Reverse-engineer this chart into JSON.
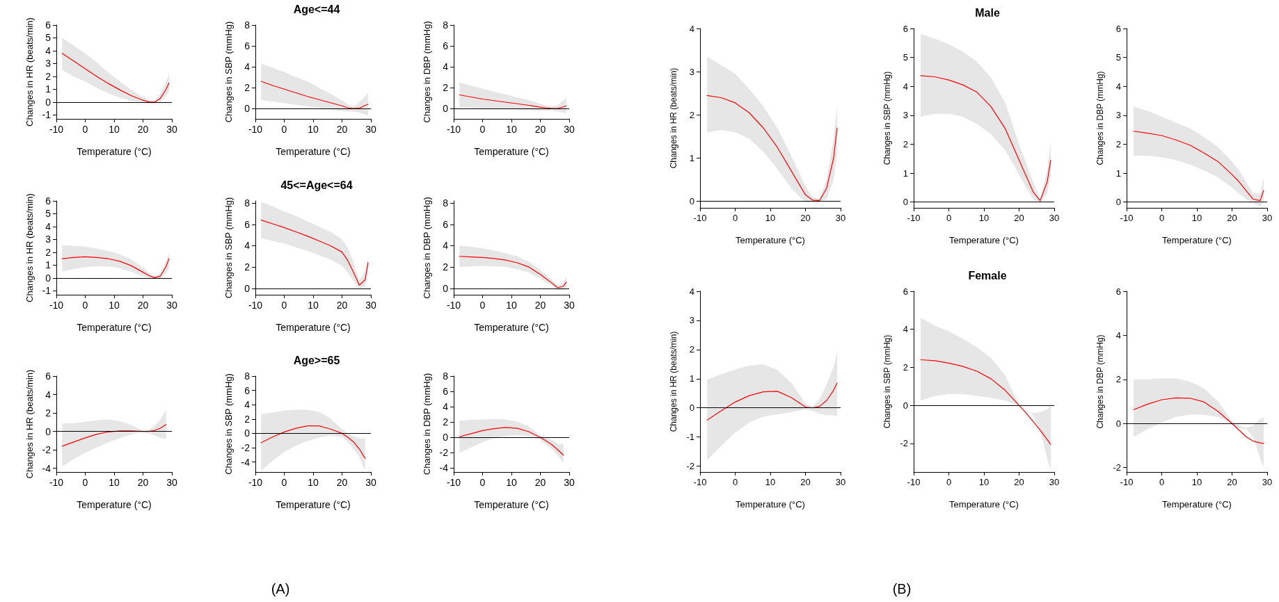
{
  "chart_data": [
    {
      "type": "line",
      "xlabel": "Temperature (°C)",
      "ylabel": "Changes in HR (beats/min)",
      "x": [
        -8,
        -4,
        0,
        4,
        8,
        12,
        16,
        20,
        22,
        24,
        26,
        28,
        29
      ],
      "xlim": [
        -10,
        30
      ],
      "xticks": [
        -10,
        0,
        10,
        20,
        30
      ],
      "ylim": [
        -1.3,
        6
      ],
      "yticks": [
        -1,
        0,
        1,
        2,
        3,
        4,
        5,
        6
      ],
      "ref_lines": [
        {
          "axis": "y",
          "value": 0
        }
      ],
      "series": [
        {
          "color": "#ff0000",
          "values": [
            3.8,
            3.2,
            2.6,
            2.0,
            1.45,
            0.95,
            0.5,
            0.15,
            0.02,
            0,
            0.3,
            1.0,
            1.5
          ],
          "lower": [
            2.5,
            2.0,
            1.6,
            1.1,
            0.7,
            0.35,
            0.1,
            -0.05,
            -0.1,
            -0.1,
            0,
            0.5,
            0.8
          ],
          "upper": [
            5.0,
            4.4,
            3.8,
            3.1,
            2.3,
            1.6,
            0.95,
            0.4,
            0.15,
            0.1,
            0.6,
            1.6,
            2.2
          ]
        }
      ]
    },
    {
      "type": "line",
      "title": "Age<=44",
      "xlabel": "Temperature (°C)",
      "ylabel": "Changes in SBP (mmHg)",
      "x": [
        -8,
        -4,
        0,
        4,
        8,
        12,
        16,
        20,
        22,
        24,
        26,
        28,
        29
      ],
      "xlim": [
        -10,
        30
      ],
      "xticks": [
        -10,
        0,
        10,
        20,
        30
      ],
      "ylim": [
        -1,
        8
      ],
      "yticks": [
        0,
        2,
        4,
        6,
        8
      ],
      "ref_lines": [
        {
          "axis": "y",
          "value": 0
        }
      ],
      "series": [
        {
          "color": "#ff0000",
          "values": [
            2.6,
            2.2,
            1.85,
            1.5,
            1.15,
            0.85,
            0.55,
            0.25,
            0.05,
            0,
            0.02,
            0.3,
            0.4
          ],
          "lower": [
            0.8,
            0.65,
            0.5,
            0.35,
            0.2,
            0.05,
            -0.1,
            -0.25,
            -0.3,
            -0.3,
            -0.4,
            -0.6,
            -0.7
          ],
          "upper": [
            4.3,
            3.9,
            3.5,
            3.0,
            2.6,
            2.0,
            1.4,
            0.8,
            0.4,
            0.2,
            0.6,
            1.2,
            1.5
          ]
        }
      ]
    },
    {
      "type": "line",
      "xlabel": "Temperature (°C)",
      "ylabel": "Changes in DBP (mmHg)",
      "x": [
        -8,
        -4,
        0,
        4,
        8,
        12,
        16,
        20,
        22,
        24,
        26,
        28,
        29
      ],
      "xlim": [
        -10,
        30
      ],
      "xticks": [
        -10,
        0,
        10,
        20,
        30
      ],
      "ylim": [
        -1,
        8
      ],
      "yticks": [
        0,
        2,
        4,
        6,
        8
      ],
      "ref_lines": [
        {
          "axis": "y",
          "value": 0
        }
      ],
      "series": [
        {
          "color": "#ff0000",
          "values": [
            1.3,
            1.1,
            0.9,
            0.75,
            0.6,
            0.45,
            0.3,
            0.12,
            0.05,
            0,
            0,
            0.15,
            0.25
          ],
          "lower": [
            0.1,
            0.05,
            0,
            0,
            -0.05,
            -0.1,
            -0.15,
            -0.2,
            -0.2,
            -0.2,
            -0.3,
            -0.4,
            -0.5
          ],
          "upper": [
            2.5,
            2.2,
            1.9,
            1.6,
            1.35,
            1.05,
            0.8,
            0.45,
            0.3,
            0.2,
            0.3,
            0.8,
            1.0
          ]
        }
      ]
    },
    {
      "type": "line",
      "xlabel": "Temperature (°C)",
      "ylabel": "Changes in HR (beats/min)",
      "x": [
        -8,
        -4,
        0,
        4,
        8,
        12,
        16,
        20,
        22,
        24,
        26,
        28,
        29
      ],
      "xlim": [
        -10,
        30
      ],
      "xticks": [
        -10,
        0,
        10,
        20,
        30
      ],
      "ylim": [
        -1.3,
        6
      ],
      "yticks": [
        -1,
        0,
        1,
        2,
        3,
        4,
        5,
        6
      ],
      "ref_lines": [
        {
          "axis": "y",
          "value": 0
        }
      ],
      "series": [
        {
          "color": "#ff0000",
          "values": [
            1.5,
            1.6,
            1.65,
            1.6,
            1.5,
            1.3,
            0.95,
            0.45,
            0.2,
            0.02,
            0.15,
            0.9,
            1.5
          ],
          "lower": [
            0.5,
            0.7,
            0.85,
            0.9,
            0.9,
            0.75,
            0.5,
            0.15,
            0,
            -0.1,
            -0.05,
            0.4,
            0.7
          ],
          "upper": [
            2.55,
            2.5,
            2.45,
            2.3,
            2.1,
            1.85,
            1.45,
            0.8,
            0.45,
            0.15,
            0.35,
            1.3,
            1.9
          ]
        }
      ]
    },
    {
      "type": "line",
      "title": "45<=Age<=64",
      "xlabel": "Temperature (°C)",
      "ylabel": "Changes in SBP (mmHg)",
      "x": [
        -8,
        -4,
        0,
        4,
        8,
        12,
        16,
        20,
        22,
        24,
        26,
        28,
        29
      ],
      "xlim": [
        -10,
        30
      ],
      "xticks": [
        -10,
        0,
        10,
        20,
        30
      ],
      "ylim": [
        -0.6,
        8.2
      ],
      "yticks": [
        0,
        2,
        4,
        6,
        8
      ],
      "ref_lines": [
        {
          "axis": "y",
          "value": 0
        }
      ],
      "series": [
        {
          "color": "#ff0000",
          "values": [
            6.4,
            6.05,
            5.7,
            5.3,
            4.9,
            4.45,
            4.0,
            3.4,
            2.6,
            1.5,
            0.3,
            0.8,
            2.4
          ],
          "lower": [
            4.7,
            4.45,
            4.2,
            3.85,
            3.5,
            3.1,
            2.7,
            2.1,
            1.5,
            0.7,
            -0.1,
            0.2,
            1.5
          ],
          "upper": [
            8.1,
            7.7,
            7.2,
            6.8,
            6.3,
            5.8,
            5.3,
            4.6,
            3.8,
            2.4,
            0.7,
            1.6,
            2.9
          ]
        }
      ]
    },
    {
      "type": "line",
      "xlabel": "Temperature (°C)",
      "ylabel": "Changes in DBP (mmHg)",
      "x": [
        -8,
        -4,
        0,
        4,
        8,
        12,
        16,
        20,
        22,
        24,
        26,
        28,
        29
      ],
      "xlim": [
        -10,
        30
      ],
      "xticks": [
        -10,
        0,
        10,
        20,
        30
      ],
      "ylim": [
        -0.6,
        8.2
      ],
      "yticks": [
        0,
        2,
        4,
        6,
        8
      ],
      "ref_lines": [
        {
          "axis": "y",
          "value": 0
        }
      ],
      "series": [
        {
          "color": "#ff0000",
          "values": [
            3.0,
            2.95,
            2.9,
            2.8,
            2.65,
            2.4,
            2.0,
            1.3,
            0.9,
            0.5,
            0.05,
            0.2,
            0.6
          ],
          "lower": [
            2.0,
            2.05,
            2.1,
            2.05,
            2.0,
            1.8,
            1.5,
            0.9,
            0.55,
            0.25,
            -0.15,
            -0.2,
            0.1
          ],
          "upper": [
            4.0,
            3.9,
            3.75,
            3.55,
            3.3,
            3.0,
            2.5,
            1.7,
            1.25,
            0.8,
            0.25,
            0.6,
            1.1
          ]
        }
      ]
    },
    {
      "type": "line",
      "xlabel": "Temperature (°C)",
      "ylabel": "Changes in HR (beats/min)",
      "x": [
        -8,
        -4,
        0,
        4,
        8,
        12,
        16,
        20,
        22,
        24,
        26,
        28
      ],
      "xlim": [
        -10,
        30
      ],
      "xticks": [
        -10,
        0,
        10,
        20,
        30
      ],
      "ylim": [
        -4.4,
        6
      ],
      "yticks": [
        -4,
        -2,
        0,
        2,
        4,
        6
      ],
      "ref_lines": [
        {
          "axis": "y",
          "value": 0
        }
      ],
      "series": [
        {
          "color": "#ff0000",
          "values": [
            -1.6,
            -1.15,
            -0.7,
            -0.3,
            -0.05,
            0.05,
            0.05,
            0,
            0,
            0.1,
            0.35,
            0.75
          ],
          "lower": [
            -3.8,
            -3.0,
            -2.3,
            -1.75,
            -1.2,
            -0.7,
            -0.35,
            -0.05,
            -0.2,
            -0.45,
            -0.7,
            -0.8
          ],
          "upper": [
            0.85,
            0.9,
            1.05,
            1.2,
            1.3,
            1.1,
            0.7,
            0.1,
            0.2,
            0.6,
            1.3,
            2.3
          ]
        }
      ]
    },
    {
      "type": "line",
      "title": "Age>=65",
      "xlabel": "Temperature (°C)",
      "ylabel": "Changes in SBP (mmHg)",
      "x": [
        -8,
        -4,
        0,
        4,
        8,
        12,
        16,
        20,
        22,
        24,
        26,
        28
      ],
      "xlim": [
        -10,
        30
      ],
      "xticks": [
        -10,
        0,
        10,
        20,
        30
      ],
      "ylim": [
        -5.4,
        8
      ],
      "yticks": [
        -4,
        -2,
        0,
        2,
        4,
        6,
        8
      ],
      "ref_lines": [
        {
          "axis": "y",
          "value": 0
        }
      ],
      "annotations": [
        "(A)"
      ],
      "series": [
        {
          "color": "#ff0000",
          "values": [
            -1.3,
            -0.5,
            0.2,
            0.7,
            1.05,
            1.05,
            0.6,
            0,
            -0.55,
            -1.2,
            -2.2,
            -3.5
          ],
          "lower": [
            -5.2,
            -3.8,
            -2.6,
            -1.7,
            -1.1,
            -0.6,
            -0.3,
            -0.5,
            -1.2,
            -2.2,
            -3.3,
            -5.2
          ],
          "upper": [
            2.7,
            2.9,
            3.2,
            3.3,
            3.3,
            3.0,
            2.1,
            0.6,
            0,
            -0.4,
            -0.7,
            -0.7
          ]
        }
      ]
    },
    {
      "type": "line",
      "xlabel": "Temperature (°C)",
      "ylabel": "Changes in DBP (mmHg)",
      "x": [
        -8,
        -4,
        0,
        4,
        8,
        12,
        16,
        20,
        22,
        24,
        26,
        28
      ],
      "xlim": [
        -10,
        30
      ],
      "xticks": [
        -10,
        0,
        10,
        20,
        30
      ],
      "ylim": [
        -4.5,
        8
      ],
      "yticks": [
        -4,
        -2,
        0,
        2,
        4,
        6,
        8
      ],
      "ref_lines": [
        {
          "axis": "y",
          "value": 0
        }
      ],
      "series": [
        {
          "color": "#ff0000",
          "values": [
            0.1,
            0.5,
            0.9,
            1.15,
            1.3,
            1.2,
            0.75,
            0,
            -0.45,
            -0.95,
            -1.6,
            -2.3
          ],
          "lower": [
            -2.0,
            -1.3,
            -0.6,
            -0.1,
            0.2,
            0.3,
            0.2,
            -0.3,
            -0.9,
            -1.5,
            -2.3,
            -3.4
          ],
          "upper": [
            2.2,
            2.3,
            2.35,
            2.4,
            2.35,
            2.1,
            1.4,
            0.3,
            -0.05,
            -0.35,
            -0.8,
            -0.9
          ]
        }
      ]
    },
    {
      "type": "line",
      "xlabel": "Temperature (°C)",
      "ylabel": "Changes in HR (beats/min)",
      "x": [
        -8,
        -4,
        0,
        4,
        8,
        12,
        16,
        20,
        22,
        24,
        26,
        28,
        29
      ],
      "xlim": [
        -10,
        30
      ],
      "xticks": [
        -10,
        0,
        10,
        20,
        30
      ],
      "ylim": [
        -0.15,
        4
      ],
      "yticks": [
        0,
        1,
        2,
        3,
        4
      ],
      "ref_lines": [
        {
          "axis": "y",
          "value": 0
        }
      ],
      "series": [
        {
          "color": "#ff0000",
          "values": [
            2.45,
            2.4,
            2.28,
            2.05,
            1.7,
            1.25,
            0.7,
            0.15,
            0.03,
            0.02,
            0.3,
            1.0,
            1.7
          ],
          "lower": [
            1.6,
            1.65,
            1.6,
            1.45,
            1.15,
            0.75,
            0.3,
            -0.02,
            -0.03,
            -0.03,
            0.05,
            0.5,
            1.1
          ],
          "upper": [
            3.35,
            3.15,
            2.95,
            2.6,
            2.2,
            1.7,
            1.05,
            0.35,
            0.1,
            0.05,
            0.5,
            1.45,
            2.2
          ]
        }
      ]
    },
    {
      "type": "line",
      "title": "Male",
      "xlabel": "Temperature (°C)",
      "ylabel": "Changes in SBP (mmHg)",
      "x": [
        -8,
        -4,
        0,
        4,
        8,
        12,
        16,
        20,
        22,
        24,
        26,
        28,
        29
      ],
      "xlim": [
        -10,
        30
      ],
      "xticks": [
        -10,
        0,
        10,
        20,
        30
      ],
      "ylim": [
        -0.2,
        6
      ],
      "yticks": [
        0,
        1,
        2,
        3,
        4,
        5,
        6
      ],
      "ref_lines": [
        {
          "axis": "y",
          "value": 0
        }
      ],
      "series": [
        {
          "color": "#ff0000",
          "values": [
            4.37,
            4.33,
            4.22,
            4.05,
            3.8,
            3.3,
            2.55,
            1.45,
            0.9,
            0.35,
            0.05,
            0.7,
            1.45
          ],
          "lower": [
            2.95,
            3.05,
            3.05,
            2.95,
            2.7,
            2.35,
            1.8,
            0.95,
            0.5,
            0.1,
            -0.05,
            0.3,
            0.9
          ],
          "upper": [
            5.8,
            5.65,
            5.45,
            5.2,
            4.85,
            4.3,
            3.45,
            2.0,
            1.35,
            0.7,
            0.1,
            1.1,
            2.1
          ]
        }
      ]
    },
    {
      "type": "line",
      "xlabel": "Temperature (°C)",
      "ylabel": "Changes in DBP (mmHg)",
      "x": [
        -8,
        -4,
        0,
        4,
        8,
        12,
        16,
        20,
        22,
        24,
        26,
        28,
        29
      ],
      "xlim": [
        -10,
        30
      ],
      "xticks": [
        -10,
        0,
        10,
        20,
        30
      ],
      "ylim": [
        -0.2,
        6
      ],
      "yticks": [
        0,
        1,
        2,
        3,
        4,
        5,
        6
      ],
      "ref_lines": [
        {
          "axis": "y",
          "value": 0
        }
      ],
      "series": [
        {
          "color": "#ff0000",
          "values": [
            2.45,
            2.38,
            2.3,
            2.15,
            1.97,
            1.7,
            1.4,
            0.95,
            0.7,
            0.4,
            0.1,
            0.05,
            0.4
          ],
          "lower": [
            1.6,
            1.6,
            1.55,
            1.45,
            1.3,
            1.1,
            0.85,
            0.5,
            0.3,
            0.1,
            -0.05,
            -0.15,
            0
          ],
          "upper": [
            3.3,
            3.15,
            2.95,
            2.75,
            2.55,
            2.25,
            1.9,
            1.4,
            1.1,
            0.7,
            0.3,
            0.3,
            0.85
          ]
        }
      ]
    },
    {
      "type": "line",
      "xlabel": "Temperature (°C)",
      "ylabel": "Changes in HR (beats/min)",
      "x": [
        -8,
        -4,
        0,
        4,
        8,
        12,
        16,
        20,
        22,
        24,
        26,
        28,
        29
      ],
      "xlim": [
        -10,
        30
      ],
      "xticks": [
        -10,
        0,
        10,
        20,
        30
      ],
      "ylim": [
        -2.2,
        4
      ],
      "yticks": [
        -2,
        -1,
        0,
        1,
        2,
        3,
        4
      ],
      "ref_lines": [
        {
          "axis": "y",
          "value": 0
        }
      ],
      "series": [
        {
          "color": "#ff0000",
          "values": [
            -0.42,
            -0.1,
            0.2,
            0.42,
            0.55,
            0.57,
            0.35,
            0.03,
            0,
            0.05,
            0.25,
            0.6,
            0.85
          ],
          "lower": [
            -1.8,
            -1.3,
            -0.85,
            -0.5,
            -0.3,
            -0.22,
            -0.15,
            -0.05,
            -0.1,
            -0.2,
            -0.25,
            -0.25,
            -0.28
          ],
          "upper": [
            0.97,
            1.15,
            1.32,
            1.45,
            1.5,
            1.3,
            0.85,
            0.15,
            0.05,
            0.3,
            0.8,
            1.4,
            1.9
          ]
        }
      ]
    },
    {
      "type": "line",
      "title": "Female",
      "xlabel": "Temperature (°C)",
      "ylabel": "Changes in SBP (mmHg)",
      "x": [
        -8,
        -4,
        0,
        4,
        8,
        12,
        16,
        20,
        22,
        24,
        26,
        28,
        29
      ],
      "xlim": [
        -10,
        30
      ],
      "xticks": [
        -10,
        0,
        10,
        20,
        30
      ],
      "ylim": [
        -3.5,
        6
      ],
      "yticks": [
        -2,
        0,
        2,
        4,
        6
      ],
      "ref_lines": [
        {
          "axis": "y",
          "value": 0
        }
      ],
      "annotations": [
        "(B)"
      ],
      "series": [
        {
          "color": "#ff0000",
          "values": [
            2.4,
            2.35,
            2.22,
            2.05,
            1.8,
            1.4,
            0.8,
            0,
            -0.4,
            -0.85,
            -1.3,
            -1.8,
            -2.05
          ],
          "lower": [
            0.25,
            0.5,
            0.6,
            0.6,
            0.5,
            0.4,
            0.25,
            0,
            -0.25,
            -0.5,
            -1.3,
            -2.8,
            -3.4
          ],
          "upper": [
            4.6,
            4.2,
            3.9,
            3.5,
            3.05,
            2.5,
            1.6,
            0,
            -0.3,
            -0.4,
            -0.35,
            -0.2,
            0
          ]
        }
      ]
    },
    {
      "type": "line",
      "xlabel": "Temperature (°C)",
      "ylabel": "Changes in DBP (mmHg)",
      "x": [
        -8,
        -4,
        0,
        4,
        8,
        12,
        16,
        20,
        22,
        24,
        26,
        28,
        29
      ],
      "xlim": [
        -10,
        30
      ],
      "xticks": [
        -10,
        0,
        10,
        20,
        30
      ],
      "ylim": [
        -2.2,
        6
      ],
      "yticks": [
        -2,
        0,
        2,
        4,
        6
      ],
      "ref_lines": [
        {
          "axis": "y",
          "value": 0
        }
      ],
      "series": [
        {
          "color": "#ff0000",
          "values": [
            0.63,
            0.88,
            1.08,
            1.16,
            1.15,
            0.98,
            0.55,
            0,
            -0.3,
            -0.6,
            -0.8,
            -0.88,
            -0.9
          ],
          "lower": [
            -0.6,
            -0.25,
            0.05,
            0.3,
            0.4,
            0.4,
            0.3,
            0,
            -0.2,
            -0.25,
            -0.6,
            -1.6,
            -2.0
          ],
          "upper": [
            2.0,
            2.0,
            2.05,
            2.05,
            1.9,
            1.6,
            1.0,
            0.1,
            -0.1,
            -0.2,
            -0.1,
            0.2,
            0.3
          ]
        }
      ]
    }
  ]
}
